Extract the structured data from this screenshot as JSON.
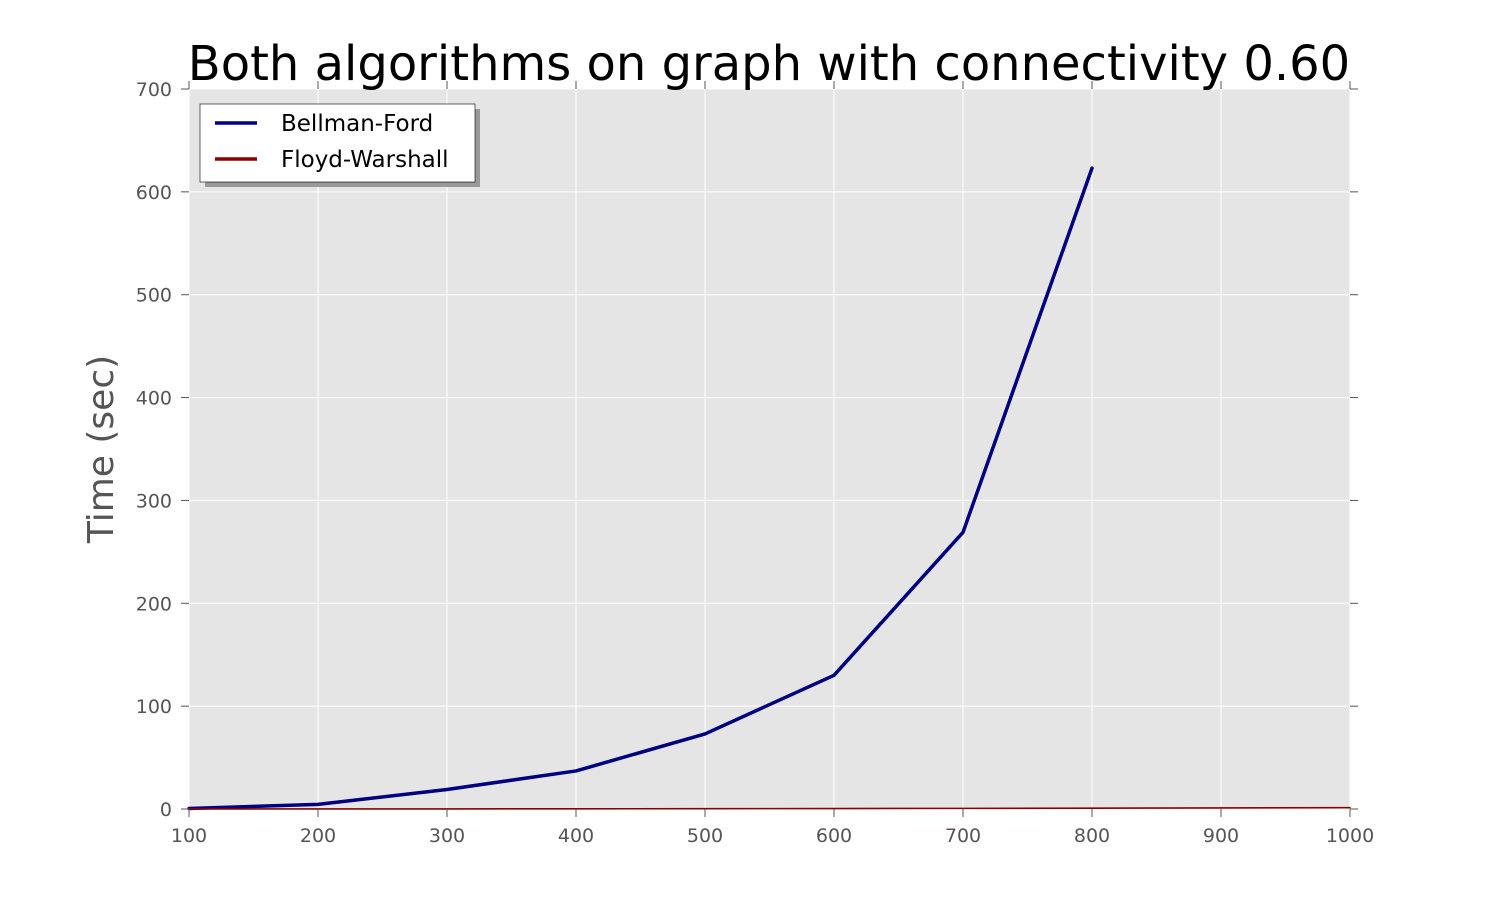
{
  "chart_data": {
    "type": "line",
    "title": "Both algorithms on graph with connectivity 0.60",
    "xlabel": "",
    "ylabel": "Time (sec)",
    "xlim": [
      100,
      1000
    ],
    "ylim": [
      0,
      700
    ],
    "x_ticks": [
      "100",
      "200",
      "300",
      "400",
      "500",
      "600",
      "700",
      "800",
      "900",
      "1000"
    ],
    "y_ticks": [
      "0",
      "100",
      "200",
      "300",
      "400",
      "500",
      "600",
      "700"
    ],
    "grid": true,
    "legend_position": "upper-left",
    "series": [
      {
        "name": "Bellman-Ford",
        "color": "#000080",
        "x": [
          100,
          200,
          300,
          400,
          500,
          600,
          700,
          800
        ],
        "values": [
          0.5,
          4.5,
          19,
          37,
          73,
          130,
          269,
          623
        ]
      },
      {
        "name": "Floyd-Warshall",
        "color": "#8b0000",
        "x": [
          100,
          200,
          300,
          400,
          500,
          600,
          700,
          800,
          900,
          1000
        ],
        "values": [
          0.02,
          0.05,
          0.1,
          0.2,
          0.3,
          0.45,
          0.6,
          0.8,
          1.0,
          1.3
        ]
      }
    ]
  }
}
